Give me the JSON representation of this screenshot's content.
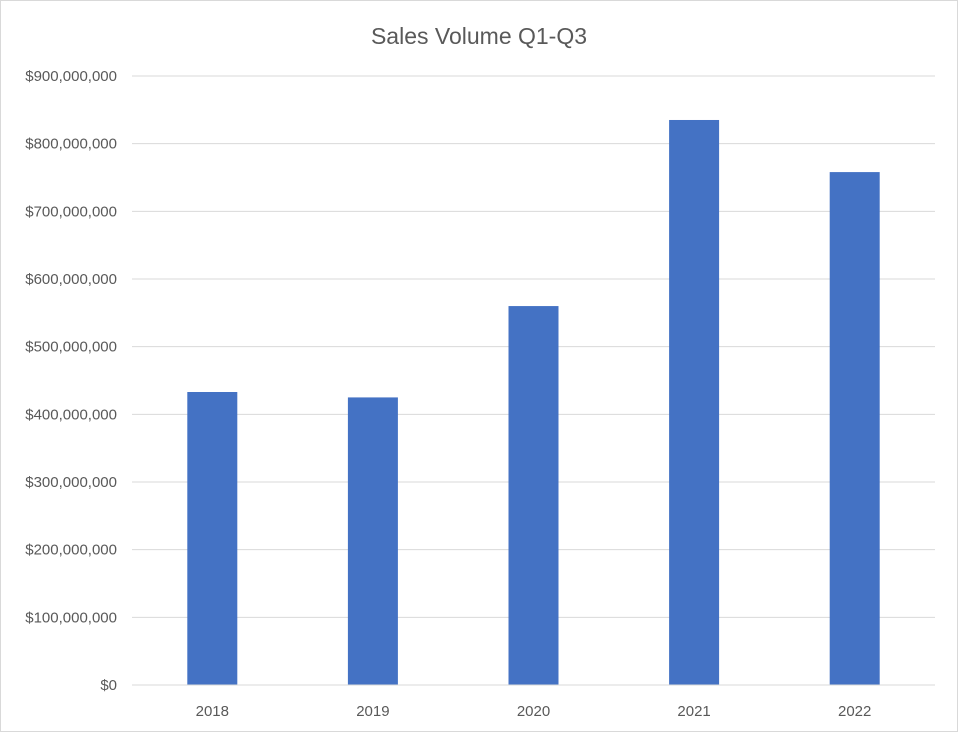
{
  "chart_data": {
    "type": "bar",
    "title": "Sales Volume Q1-Q3",
    "xlabel": "",
    "ylabel": "",
    "categories": [
      "2018",
      "2019",
      "2020",
      "2021",
      "2022"
    ],
    "values": [
      433000000,
      425000000,
      560000000,
      835000000,
      758000000
    ],
    "ylim": [
      0,
      900000000
    ],
    "y_ticks": [
      0,
      100000000,
      200000000,
      300000000,
      400000000,
      500000000,
      600000000,
      700000000,
      800000000,
      900000000
    ],
    "y_tick_labels": [
      "$0",
      "$100,000,000",
      "$200,000,000",
      "$300,000,000",
      "$400,000,000",
      "$500,000,000",
      "$600,000,000",
      "$700,000,000",
      "$800,000,000",
      "$900,000,000"
    ],
    "grid": true,
    "legend": "none",
    "bar_color": "#4472C4"
  }
}
